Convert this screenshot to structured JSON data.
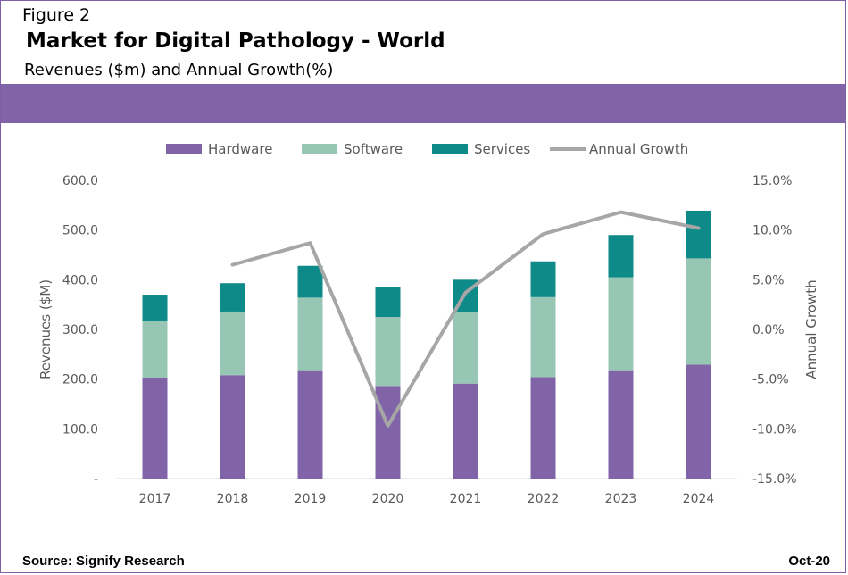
{
  "header": {
    "figure_label": "Figure 2",
    "title": "Market for Digital Pathology - World",
    "subtitle": "Revenues ($m) and Annual Growth(%)"
  },
  "footer": {
    "source": "Source: Signify Research",
    "date": "Oct-20"
  },
  "colors": {
    "band": "#8164A8",
    "hardware": "#8164A8",
    "software": "#98C6B4",
    "services": "#0E8A88",
    "growth": "#A6A6A6"
  },
  "chart_data": {
    "type": "bar",
    "stacked": true,
    "categories": [
      "2017",
      "2018",
      "2019",
      "2020",
      "2021",
      "2022",
      "2023",
      "2024"
    ],
    "series": [
      {
        "name": "Hardware",
        "values": [
          203,
          208,
          218,
          186,
          191,
          204,
          218,
          229
        ]
      },
      {
        "name": "Software",
        "values": [
          115,
          128,
          146,
          139,
          144,
          161,
          187,
          214
        ]
      },
      {
        "name": "Services",
        "values": [
          52,
          57,
          64,
          61,
          65,
          72,
          85,
          96
        ]
      }
    ],
    "line_series": {
      "name": "Annual Growth",
      "axis": "right",
      "values": [
        null,
        6.5,
        8.7,
        -9.7,
        3.7,
        9.6,
        11.8,
        10.2
      ]
    },
    "ylabel": "Revenues ($M)",
    "y2label": "Annual Growth",
    "ylim": [
      0,
      600
    ],
    "y2lim": [
      -15,
      15
    ],
    "y_ticks": [
      "-",
      "100.0",
      "200.0",
      "300.0",
      "400.0",
      "500.0",
      "600.0"
    ],
    "y2_ticks": [
      "-15.0%",
      "-10.0%",
      "-5.0%",
      "0.0%",
      "5.0%",
      "10.0%",
      "15.0%"
    ],
    "legend_position": "top-center",
    "grid": false
  }
}
